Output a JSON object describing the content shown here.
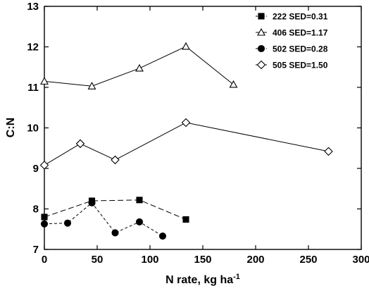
{
  "chart_data": {
    "type": "line",
    "xlabel": "N rate, kg ha",
    "xlabel_superscript": "-1",
    "ylabel": "C:N",
    "xlim": [
      0,
      300
    ],
    "ylim": [
      7,
      13
    ],
    "xticks": [
      0,
      50,
      100,
      150,
      200,
      250,
      300
    ],
    "yticks": [
      7,
      8,
      9,
      10,
      11,
      12,
      13
    ],
    "legend_position": "top-right",
    "grid": false,
    "series": [
      {
        "name": "222 SED=0.31",
        "marker": "filled-square",
        "line_style": "long-dash",
        "x": [
          0,
          45,
          90,
          134
        ],
        "y": [
          7.8,
          8.2,
          8.22,
          7.74
        ]
      },
      {
        "name": "406 SED=1.17",
        "marker": "open-triangle",
        "line_style": "solid",
        "x": [
          0,
          45,
          90,
          134,
          179
        ],
        "y": [
          11.15,
          11.03,
          11.47,
          12.01,
          11.07
        ]
      },
      {
        "name": "502 SED=0.28",
        "marker": "filled-circle",
        "line_style": "short-dash",
        "x": [
          0,
          22,
          45,
          67,
          90,
          112
        ],
        "y": [
          7.63,
          7.65,
          8.15,
          7.41,
          7.68,
          7.33
        ]
      },
      {
        "name": "505 SED=1.50",
        "marker": "open-diamond",
        "line_style": "solid",
        "x": [
          0,
          34,
          67,
          134,
          269
        ],
        "y": [
          9.08,
          9.61,
          9.21,
          10.13,
          9.42
        ]
      }
    ]
  }
}
